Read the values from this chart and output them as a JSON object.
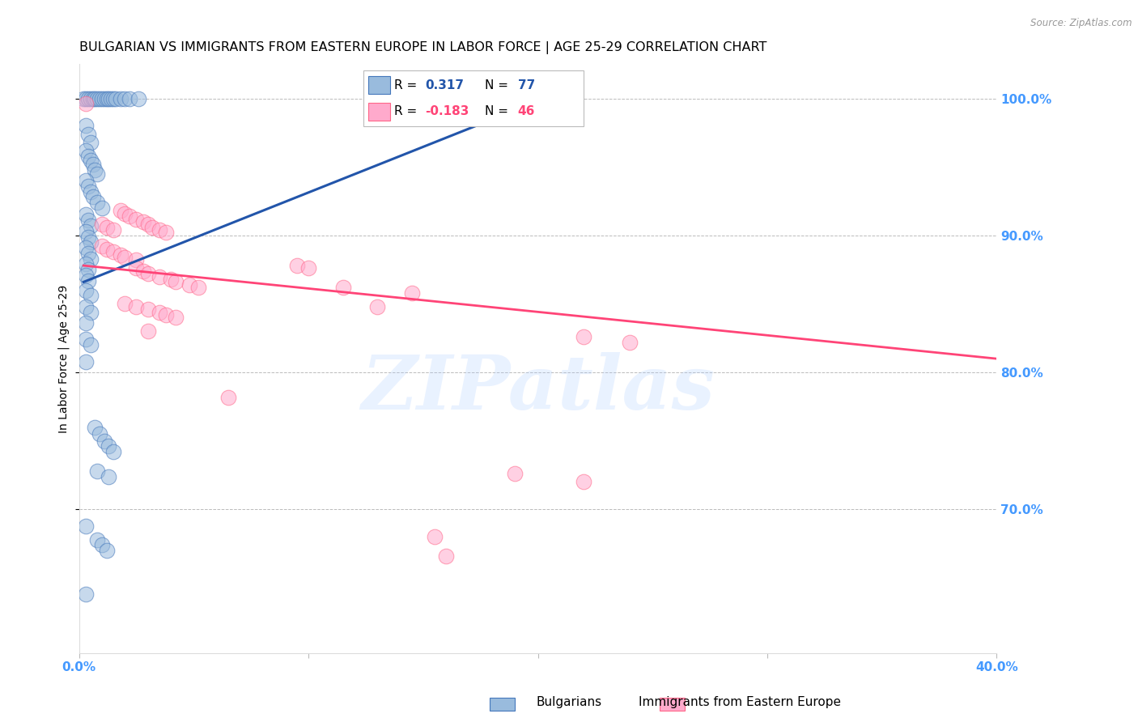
{
  "title": "BULGARIAN VS IMMIGRANTS FROM EASTERN EUROPE IN LABOR FORCE | AGE 25-29 CORRELATION CHART",
  "source": "Source: ZipAtlas.com",
  "ylabel": "In Labor Force | Age 25-29",
  "watermark": "ZIPatlas",
  "xlim": [
    0.0,
    0.4
  ],
  "ylim": [
    0.595,
    1.025
  ],
  "blue_color": "#99BBDD",
  "pink_color": "#FFAACC",
  "blue_edge_color": "#4477BB",
  "pink_edge_color": "#FF6688",
  "blue_line_color": "#2255AA",
  "pink_line_color": "#FF4477",
  "right_tick_color": "#4499FF",
  "bottom_tick_color": "#4499FF",
  "blue_scatter": [
    [
      0.002,
      1.0
    ],
    [
      0.003,
      1.0
    ],
    [
      0.004,
      1.0
    ],
    [
      0.005,
      1.0
    ],
    [
      0.006,
      1.0
    ],
    [
      0.007,
      1.0
    ],
    [
      0.008,
      1.0
    ],
    [
      0.009,
      1.0
    ],
    [
      0.01,
      1.0
    ],
    [
      0.011,
      1.0
    ],
    [
      0.012,
      1.0
    ],
    [
      0.013,
      1.0
    ],
    [
      0.014,
      1.0
    ],
    [
      0.015,
      1.0
    ],
    [
      0.016,
      1.0
    ],
    [
      0.018,
      1.0
    ],
    [
      0.02,
      1.0
    ],
    [
      0.022,
      1.0
    ],
    [
      0.026,
      1.0
    ],
    [
      0.003,
      0.98
    ],
    [
      0.004,
      0.974
    ],
    [
      0.005,
      0.968
    ],
    [
      0.003,
      0.962
    ],
    [
      0.004,
      0.958
    ],
    [
      0.005,
      0.955
    ],
    [
      0.006,
      0.952
    ],
    [
      0.007,
      0.948
    ],
    [
      0.008,
      0.945
    ],
    [
      0.003,
      0.94
    ],
    [
      0.004,
      0.936
    ],
    [
      0.005,
      0.932
    ],
    [
      0.006,
      0.928
    ],
    [
      0.008,
      0.924
    ],
    [
      0.01,
      0.92
    ],
    [
      0.003,
      0.915
    ],
    [
      0.004,
      0.911
    ],
    [
      0.005,
      0.907
    ],
    [
      0.003,
      0.903
    ],
    [
      0.004,
      0.899
    ],
    [
      0.005,
      0.895
    ],
    [
      0.003,
      0.891
    ],
    [
      0.004,
      0.887
    ],
    [
      0.005,
      0.883
    ],
    [
      0.003,
      0.879
    ],
    [
      0.004,
      0.875
    ],
    [
      0.003,
      0.871
    ],
    [
      0.004,
      0.867
    ],
    [
      0.003,
      0.86
    ],
    [
      0.005,
      0.856
    ],
    [
      0.003,
      0.848
    ],
    [
      0.005,
      0.844
    ],
    [
      0.003,
      0.836
    ],
    [
      0.003,
      0.824
    ],
    [
      0.005,
      0.82
    ],
    [
      0.003,
      0.808
    ],
    [
      0.007,
      0.76
    ],
    [
      0.009,
      0.755
    ],
    [
      0.011,
      0.75
    ],
    [
      0.013,
      0.746
    ],
    [
      0.015,
      0.742
    ],
    [
      0.008,
      0.728
    ],
    [
      0.013,
      0.724
    ],
    [
      0.003,
      0.688
    ],
    [
      0.008,
      0.678
    ],
    [
      0.01,
      0.674
    ],
    [
      0.012,
      0.67
    ],
    [
      0.003,
      0.638
    ]
  ],
  "pink_scatter": [
    [
      0.003,
      0.996
    ],
    [
      0.01,
      0.908
    ],
    [
      0.012,
      0.906
    ],
    [
      0.015,
      0.904
    ],
    [
      0.018,
      0.918
    ],
    [
      0.02,
      0.916
    ],
    [
      0.022,
      0.914
    ],
    [
      0.025,
      0.912
    ],
    [
      0.028,
      0.91
    ],
    [
      0.03,
      0.908
    ],
    [
      0.032,
      0.906
    ],
    [
      0.035,
      0.904
    ],
    [
      0.038,
      0.902
    ],
    [
      0.01,
      0.892
    ],
    [
      0.012,
      0.89
    ],
    [
      0.015,
      0.888
    ],
    [
      0.018,
      0.886
    ],
    [
      0.02,
      0.884
    ],
    [
      0.025,
      0.882
    ],
    [
      0.025,
      0.876
    ],
    [
      0.028,
      0.874
    ],
    [
      0.03,
      0.872
    ],
    [
      0.035,
      0.87
    ],
    [
      0.04,
      0.868
    ],
    [
      0.042,
      0.866
    ],
    [
      0.048,
      0.864
    ],
    [
      0.052,
      0.862
    ],
    [
      0.095,
      0.878
    ],
    [
      0.1,
      0.876
    ],
    [
      0.115,
      0.862
    ],
    [
      0.145,
      0.858
    ],
    [
      0.02,
      0.85
    ],
    [
      0.025,
      0.848
    ],
    [
      0.03,
      0.846
    ],
    [
      0.035,
      0.844
    ],
    [
      0.038,
      0.842
    ],
    [
      0.042,
      0.84
    ],
    [
      0.03,
      0.83
    ],
    [
      0.13,
      0.848
    ],
    [
      0.22,
      0.826
    ],
    [
      0.24,
      0.822
    ],
    [
      0.065,
      0.782
    ],
    [
      0.19,
      0.726
    ],
    [
      0.22,
      0.72
    ],
    [
      0.155,
      0.68
    ],
    [
      0.16,
      0.666
    ]
  ],
  "blue_trendline_x": [
    0.002,
    0.2
  ],
  "blue_trendline_y": [
    0.866,
    0.998
  ],
  "pink_trendline_x": [
    0.002,
    0.4
  ],
  "pink_trendline_y": [
    0.878,
    0.81
  ],
  "yticks": [
    0.7,
    0.8,
    0.9,
    1.0
  ],
  "ytick_labels": [
    "70.0%",
    "80.0%",
    "90.0%",
    "100.0%"
  ],
  "xtick_positions": [
    0.0,
    0.1,
    0.2,
    0.3,
    0.4
  ],
  "xtick_labels": [
    "0.0%",
    "",
    "",
    "",
    "40.0%"
  ],
  "background_color": "#FFFFFF",
  "grid_color": "#BBBBBB",
  "title_fontsize": 11.5,
  "ylabel_fontsize": 10
}
